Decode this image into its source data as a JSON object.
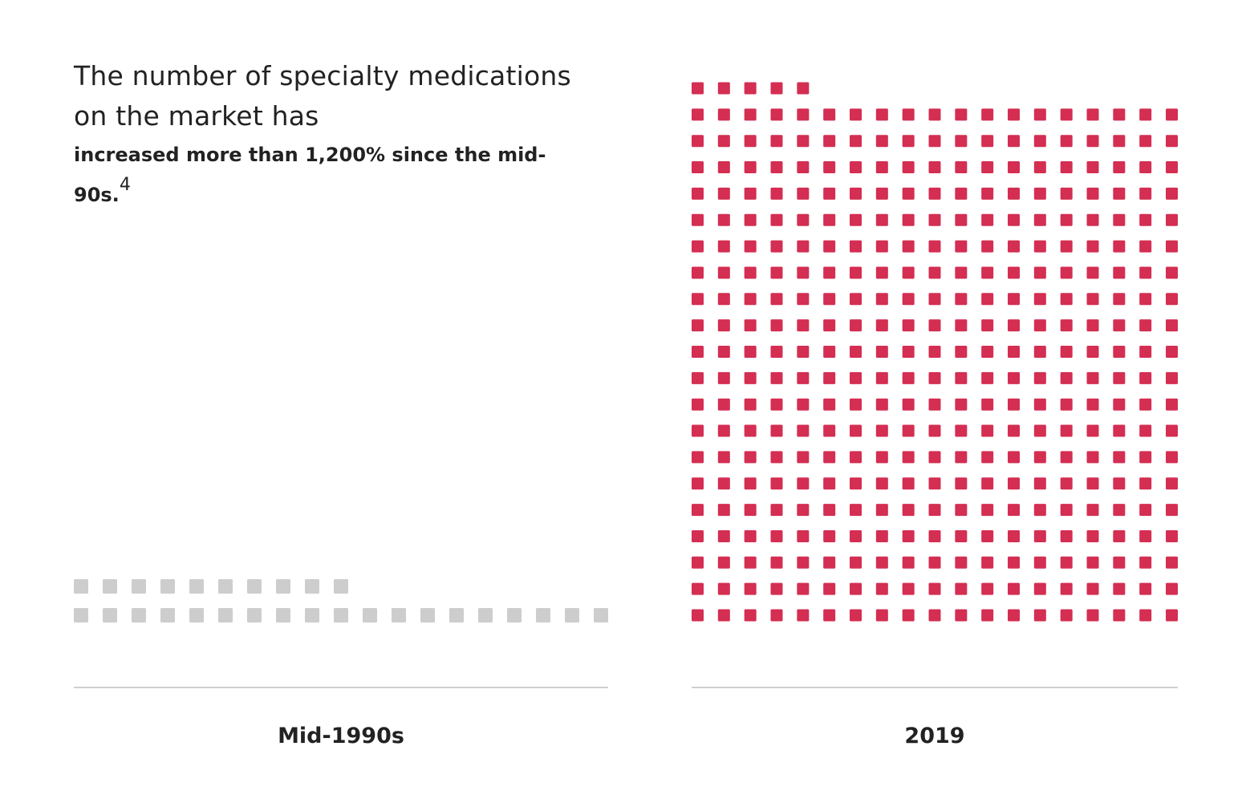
{
  "headline": {
    "lead": "The number of specialty medications on the market has",
    "emphasis": "increased more than 1,200% since the mid-90s.",
    "footnote": "4"
  },
  "chart_data": {
    "type": "waffle",
    "title": "The number of specialty medications on the market has increased more than 1,200% since the mid-90s.",
    "categories": [
      "Mid-1990s",
      "2019"
    ],
    "values": [
      29,
      385
    ],
    "grid_columns": 19,
    "colors": [
      "#cdcdcd",
      "#d42e52"
    ]
  }
}
